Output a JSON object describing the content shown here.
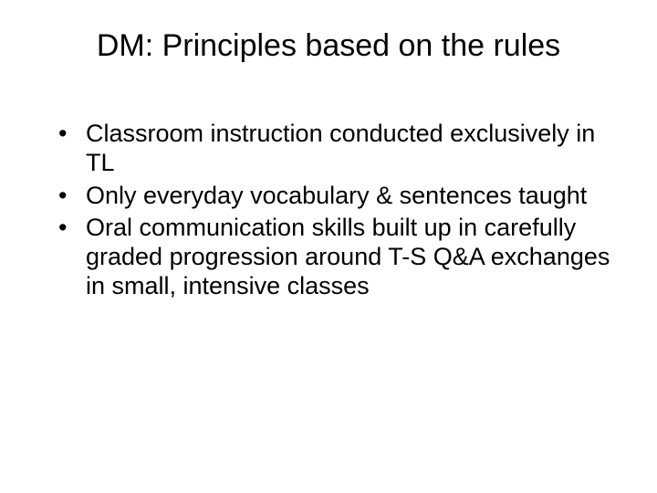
{
  "slide": {
    "title": "DM: Principles based on the rules",
    "bullets": [
      "Classroom instruction conducted exclusively in TL",
      "Only everyday vocabulary & sentences taught",
      "Oral communication skills built up in carefully graded progression around T-S Q&A exchanges in small, intensive classes"
    ],
    "colors": {
      "background": "#ffffff",
      "text": "#000000"
    },
    "typography": {
      "title_fontsize": 34,
      "body_fontsize": 27,
      "font_family": "Arial"
    }
  }
}
